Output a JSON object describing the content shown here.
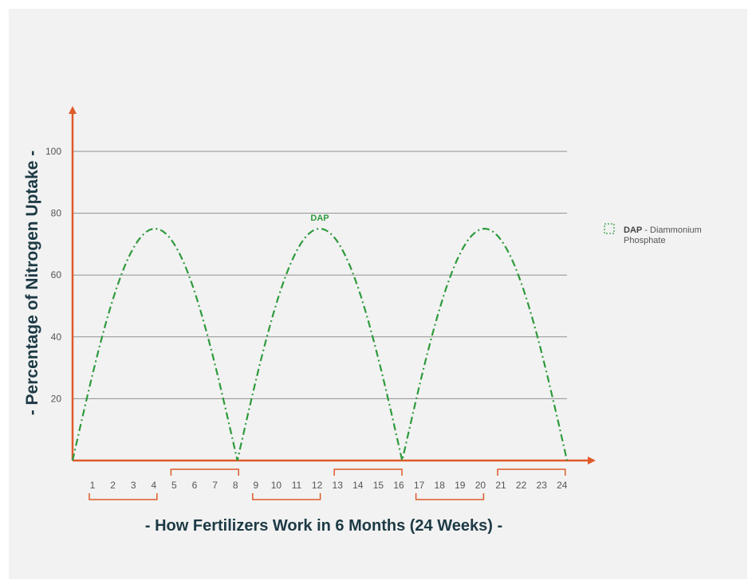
{
  "chart_data": {
    "type": "line",
    "title": "",
    "xlabel": "- How Fertilizers Work in 6 Months (24 Weeks) -",
    "ylabel": "- Percentage of Nitrogen Uptake -",
    "ylim": [
      0,
      100
    ],
    "yticks": [
      20,
      40,
      60,
      80,
      100
    ],
    "xlim": [
      0,
      24
    ],
    "x_tick_labels": [
      "1",
      "2",
      "3",
      "4",
      "5",
      "6",
      "7",
      "8",
      "9",
      "10",
      "11",
      "12",
      "13",
      "14",
      "15",
      "16",
      "17",
      "18",
      "19",
      "20",
      "21",
      "22",
      "23",
      "24"
    ],
    "grid": true,
    "legend_position": "right",
    "series": [
      {
        "name": "DAP",
        "color": "#2e9a3c",
        "style": "dash-dot",
        "x": [
          0,
          1,
          2,
          3,
          4,
          5,
          6,
          7,
          8,
          9,
          10,
          11,
          12,
          13,
          14,
          15,
          16,
          17,
          18,
          19,
          20,
          21,
          22,
          23,
          24
        ],
        "values": [
          0,
          41,
          64,
          72,
          75,
          72,
          64,
          41,
          0,
          41,
          64,
          72,
          75,
          72,
          64,
          41,
          0,
          41,
          64,
          72,
          75,
          72,
          64,
          41,
          0
        ]
      }
    ],
    "annotations": [
      {
        "text": "DAP",
        "x": 12,
        "y": 75
      }
    ],
    "legend": {
      "abbr": "DAP",
      "sep": " - ",
      "line1": "Diammonium",
      "line2": "Phosphate"
    },
    "axis_color": "#e05a2b",
    "grid_color": "#8f8f8f",
    "text_color": "#1d3a45"
  }
}
